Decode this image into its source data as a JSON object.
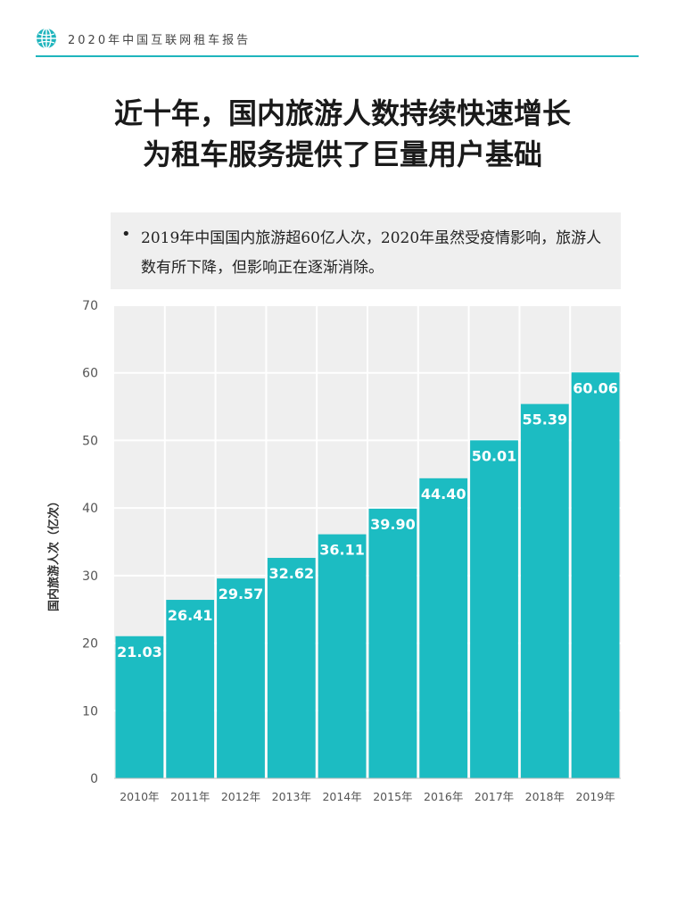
{
  "header": {
    "report_title": "2020年中国互联网租车报告",
    "icon": "globe-icon",
    "accent": "#1fb5bd"
  },
  "headline": {
    "line1": "近十年，国内旅游人数持续快速增长",
    "line2": "为租车服务提供了巨量用户基础"
  },
  "note": {
    "bullet": "•",
    "text": "2019年中国国内旅游超60亿人次，2020年虽然受疫情影响，旅游人数有所下降，但影响正在逐渐消除。"
  },
  "chart_data": {
    "type": "bar",
    "categories": [
      "2010年",
      "2011年",
      "2012年",
      "2013年",
      "2014年",
      "2015年",
      "2016年",
      "2017年",
      "2018年",
      "2019年"
    ],
    "values": [
      21.03,
      26.41,
      29.57,
      32.62,
      36.11,
      39.9,
      44.4,
      50.01,
      55.39,
      60.06
    ],
    "value_labels": [
      "21.03",
      "26.41",
      "29.57",
      "32.62",
      "36.11",
      "39.90",
      "44.40",
      "50.01",
      "55.39",
      "60.06"
    ],
    "ylabel": "国内旅游人次（亿次）",
    "ylim": [
      0,
      70
    ],
    "yticks": [
      0,
      10,
      20,
      30,
      40,
      50,
      60,
      70
    ],
    "bar_color": "#1cbcc2",
    "plot_background": "#efefef",
    "grid": true,
    "legend": "none"
  }
}
